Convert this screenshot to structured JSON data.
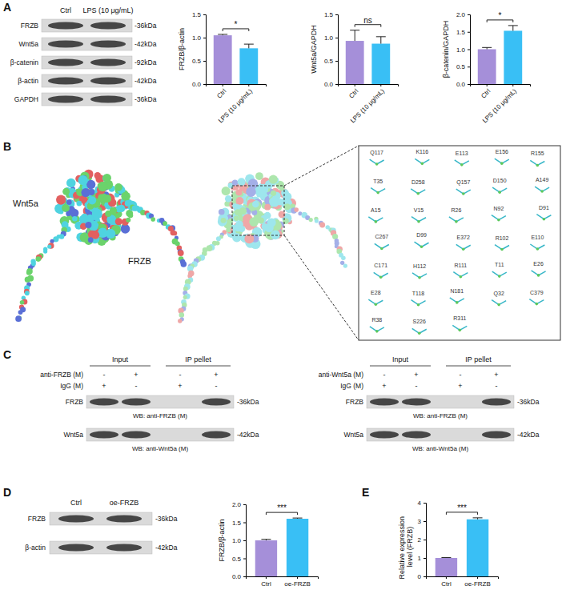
{
  "panel_labels": [
    "A",
    "B",
    "C",
    "D",
    "E"
  ],
  "blot_A": {
    "lanes": [
      "Ctrl",
      "LPS (10 μg/mL)"
    ],
    "rows": [
      {
        "name": "FRZB",
        "kda": "-36kDa"
      },
      {
        "name": "Wnt5a",
        "kda": "-42kDa"
      },
      {
        "name": "β-catenin",
        "kda": "-92kDa"
      },
      {
        "name": "β-actin",
        "kda": "-42kDa"
      },
      {
        "name": "GAPDH",
        "kda": "-36kDa"
      }
    ]
  },
  "structure_B": {
    "chains": [
      "Wnt5a",
      "FRZB"
    ],
    "residues": [
      "Q117",
      "K116",
      "E113",
      "E156",
      "R155",
      "T35",
      "D258",
      "Q157",
      "D150",
      "A149",
      "A15",
      "V15",
      "R26",
      "N92",
      "D91",
      "C267",
      "D99",
      "E372",
      "R102",
      "E110",
      "C171",
      "H112",
      "R111",
      "T11",
      "E26",
      "E28",
      "T118",
      "N181",
      "Q32",
      "C379",
      "R38",
      "S226",
      "R311"
    ]
  },
  "coip_C": [
    {
      "groups": [
        "Input",
        "IP pellet"
      ],
      "treatments": [
        {
          "name": "anti-FRZB (M)",
          "signs": [
            "-",
            "+",
            "-",
            "+"
          ]
        },
        {
          "name": "IgG (M)",
          "signs": [
            "+",
            "-",
            "+",
            "-"
          ]
        }
      ],
      "rows": [
        {
          "name": "FRZB",
          "kda": "-36kDa",
          "caption": "WB: anti-FRZB (M)"
        },
        {
          "name": "Wnt5a",
          "kda": "-42kDa",
          "caption": "WB: anti-Wnt5a (M)"
        }
      ]
    },
    {
      "groups": [
        "Input",
        "IP pellet"
      ],
      "treatments": [
        {
          "name": "anti-Wnt5a (M)",
          "signs": [
            "-",
            "+",
            "-",
            "+"
          ]
        },
        {
          "name": "IgG (M)",
          "signs": [
            "+",
            "-",
            "+",
            "-"
          ]
        }
      ],
      "rows": [
        {
          "name": "FRZB",
          "kda": "-36kDa",
          "caption": "WB: anti-FRZB (M)"
        },
        {
          "name": "Wnt5a",
          "kda": "-42kDa",
          "caption": "WB: anti-Wnt5a (M)"
        }
      ]
    }
  ],
  "blot_D": {
    "lanes": [
      "Ctrl",
      "oe-FRZB"
    ],
    "rows": [
      {
        "name": "FRZB",
        "kda": "-36kDa"
      },
      {
        "name": "β-actin",
        "kda": "-42kDa"
      }
    ]
  },
  "chart_data": [
    {
      "type": "bar",
      "ylabel": "FRZB/β-actin",
      "categories": [
        "Ctrl",
        "LPS (10 μg/mL)"
      ],
      "values": [
        1.05,
        0.77
      ],
      "errors": [
        0.02,
        0.09
      ],
      "colors": [
        "#a58fd9",
        "#39bff5"
      ],
      "ylim": [
        0,
        1.5
      ],
      "yticks": [
        {
          "value": 0,
          "label": "0.0"
        },
        0.5,
        {
          "value": 1,
          "label": "1.0"
        },
        1.5
      ],
      "annotation": "*"
    },
    {
      "type": "bar",
      "ylabel": "Wnt5a/GAPDH",
      "categories": [
        "Ctrl",
        "LPS (10 μg/mL)"
      ],
      "values": [
        0.93,
        0.87
      ],
      "errors": [
        0.23,
        0.15
      ],
      "colors": [
        "#a58fd9",
        "#39bff5"
      ],
      "ylim": [
        0,
        1.5
      ],
      "yticks": [
        {
          "value": 0,
          "label": "0.0"
        },
        0.5,
        {
          "value": 1,
          "label": "1.0"
        },
        1.5
      ],
      "annotation": "ns"
    },
    {
      "type": "bar",
      "ylabel": "β-catenin/GAPDH",
      "categories": [
        "Ctrl",
        "LPS (10 μg/mL)"
      ],
      "values": [
        1.0,
        1.53
      ],
      "errors": [
        0.05,
        0.15
      ],
      "colors": [
        "#a58fd9",
        "#39bff5"
      ],
      "ylim": [
        0,
        2
      ],
      "yticks": [
        {
          "value": 0,
          "label": "0.0"
        },
        0.5,
        {
          "value": 1,
          "label": "1.0"
        },
        1.5,
        {
          "value": 2,
          "label": "2.0"
        }
      ],
      "annotation": "*"
    },
    {
      "type": "bar",
      "ylabel": "FRZB/β-actin",
      "categories": [
        "Ctrl",
        "oe-FRZB"
      ],
      "values": [
        1.0,
        1.6
      ],
      "errors": [
        0.03,
        0.02
      ],
      "colors": [
        "#a58fd9",
        "#39bff5"
      ],
      "ylim": [
        0,
        2
      ],
      "yticks": [
        {
          "value": 0,
          "label": "0.0"
        },
        0.5,
        {
          "value": 1,
          "label": "1.0"
        },
        1.5,
        {
          "value": 2,
          "label": "2.0"
        }
      ],
      "annotation": "***"
    },
    {
      "type": "bar",
      "ylabel": "Relative expression level (FRZB)",
      "categories": [
        "Ctrl",
        "oe-FRZB"
      ],
      "values": [
        1.0,
        3.1
      ],
      "errors": [
        0.02,
        0.08
      ],
      "colors": [
        "#a58fd9",
        "#39bff5"
      ],
      "ylim": [
        0,
        4
      ],
      "yticks": [
        0,
        1,
        2,
        3,
        4
      ],
      "annotation": "***"
    }
  ]
}
